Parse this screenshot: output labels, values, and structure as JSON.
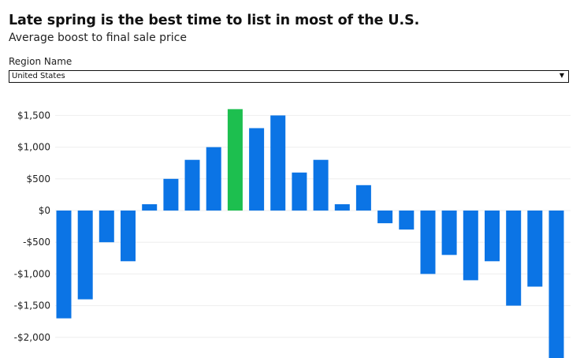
{
  "header": {
    "title": "Late spring is the best time to list in most of the U.S.",
    "subtitle": "Average boost to final sale price"
  },
  "filter": {
    "label": "Region Name",
    "selected": "United States",
    "arrow_icon": "triangle-down-icon"
  },
  "colors": {
    "bar": "#0b74e5",
    "highlight": "#1dbf4f",
    "grid": "#eeeeee"
  },
  "chart_data": {
    "type": "bar",
    "title": "Late spring is the best time to list in most of the U.S.",
    "subtitle": "Average boost to final sale price",
    "xlabel": "",
    "ylabel": "",
    "ylim": [
      -2350,
      1700
    ],
    "yticks": [
      1500,
      1000,
      500,
      0,
      -500,
      -1000,
      -1500,
      -2000
    ],
    "ytick_labels": [
      "$1,500",
      "$1,000",
      "$500",
      "$0",
      "-$500",
      "-$1,000",
      "-$1,500",
      "-$2,000"
    ],
    "grid": true,
    "highlight_index": 8,
    "values": [
      -1700,
      -1400,
      -500,
      -800,
      100,
      500,
      800,
      1000,
      1600,
      1300,
      1500,
      600,
      800,
      100,
      400,
      -200,
      -300,
      -1000,
      -700,
      -1100,
      -800,
      -1500,
      -1200,
      -2350
    ]
  }
}
